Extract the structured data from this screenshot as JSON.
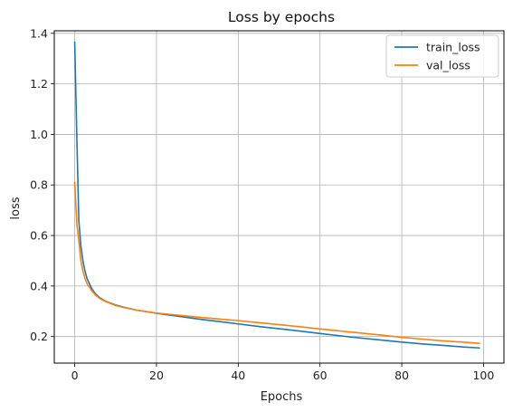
{
  "chart_data": {
    "type": "line",
    "title": "Loss by epochs",
    "xlabel": "Epochs",
    "ylabel": "loss",
    "xlim": [
      -5,
      105
    ],
    "ylim": [
      0.095,
      1.41
    ],
    "xticks": [
      0,
      20,
      40,
      60,
      80,
      100
    ],
    "yticks": [
      0.2,
      0.4,
      0.6,
      0.8,
      1.0,
      1.2,
      1.4
    ],
    "xtick_labels": [
      "0",
      "20",
      "40",
      "60",
      "80",
      "100"
    ],
    "ytick_labels": [
      "0.2",
      "0.4",
      "0.6",
      "0.8",
      "1.0",
      "1.2",
      "1.4"
    ],
    "grid": true,
    "legend_position": "top-right",
    "series": [
      {
        "name": "train_loss",
        "color": "#1f77b4",
        "x": [
          0,
          0.5,
          1,
          1.5,
          2,
          2.5,
          3,
          4,
          5,
          6,
          7,
          8,
          10,
          12,
          15,
          20,
          25,
          30,
          35,
          40,
          45,
          50,
          55,
          60,
          65,
          70,
          75,
          80,
          85,
          90,
          95,
          99
        ],
        "y": [
          1.365,
          1.0,
          0.66,
          0.56,
          0.5,
          0.46,
          0.43,
          0.395,
          0.37,
          0.355,
          0.345,
          0.337,
          0.325,
          0.316,
          0.305,
          0.292,
          0.281,
          0.27,
          0.26,
          0.25,
          0.24,
          0.231,
          0.222,
          0.212,
          0.203,
          0.194,
          0.186,
          0.178,
          0.171,
          0.165,
          0.159,
          0.155
        ]
      },
      {
        "name": "val_loss",
        "color": "#ff7f0e",
        "x": [
          0,
          0.5,
          1,
          1.5,
          2,
          2.5,
          3,
          4,
          5,
          6,
          7,
          8,
          10,
          12,
          15,
          20,
          25,
          30,
          35,
          40,
          45,
          50,
          55,
          60,
          65,
          70,
          75,
          80,
          85,
          90,
          95,
          99
        ],
        "y": [
          0.81,
          0.65,
          0.58,
          0.5,
          0.46,
          0.43,
          0.41,
          0.385,
          0.365,
          0.352,
          0.343,
          0.336,
          0.323,
          0.315,
          0.305,
          0.293,
          0.285,
          0.277,
          0.27,
          0.263,
          0.255,
          0.247,
          0.239,
          0.23,
          0.222,
          0.214,
          0.206,
          0.197,
          0.19,
          0.183,
          0.178,
          0.173
        ]
      }
    ]
  }
}
